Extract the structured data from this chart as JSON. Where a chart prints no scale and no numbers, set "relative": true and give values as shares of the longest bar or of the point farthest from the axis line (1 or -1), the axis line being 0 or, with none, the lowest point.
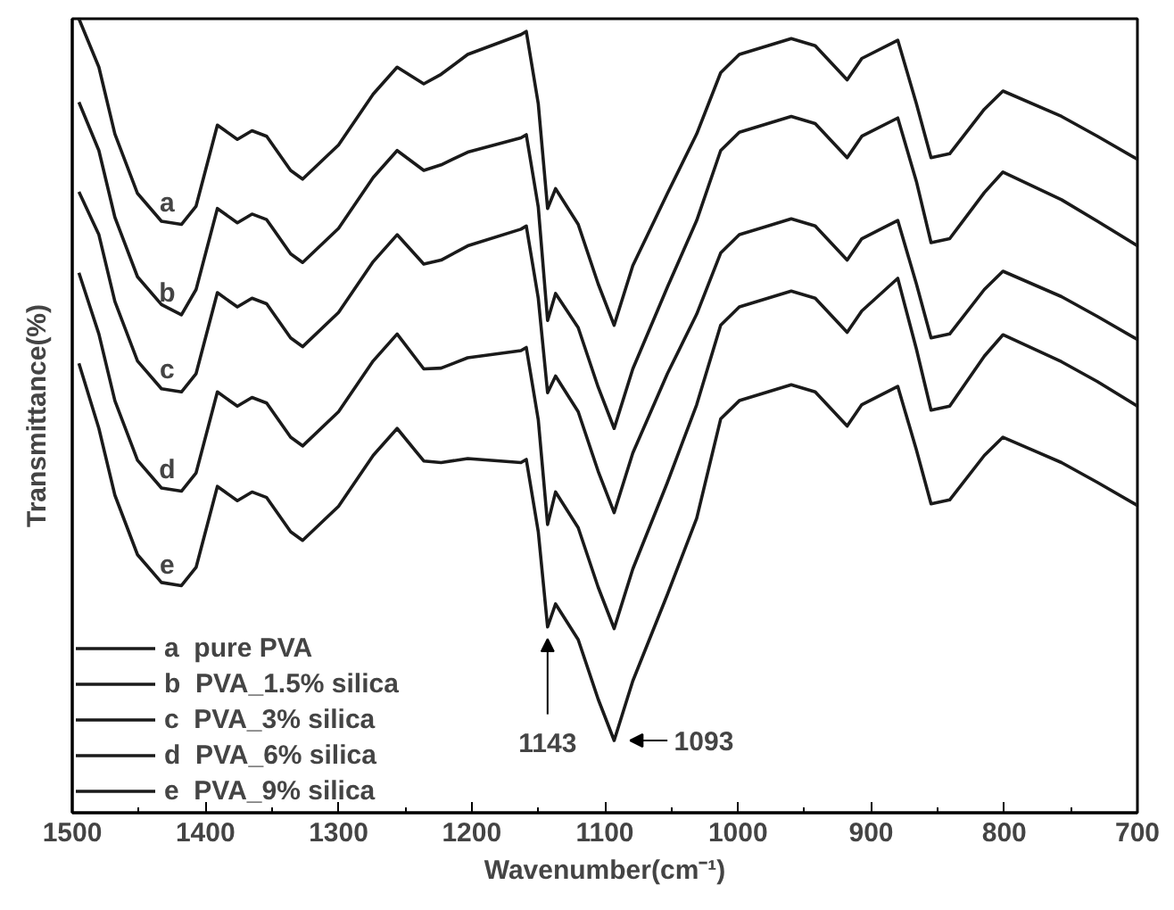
{
  "chart_data": {
    "type": "line",
    "relative": true,
    "xlabel": "Wavenumber(cm⁻¹)",
    "ylabel": "Transmittance(%)",
    "x": [
      1495,
      1480,
      1468,
      1451,
      1433,
      1418,
      1407,
      1391,
      1376,
      1365,
      1354,
      1336,
      1327,
      1300,
      1274,
      1256,
      1236,
      1223,
      1203,
      1163,
      1159,
      1150,
      1143,
      1137,
      1120,
      1105,
      1093,
      1079,
      1053,
      1031,
      1013,
      999,
      960,
      942,
      918,
      907,
      880,
      866,
      855,
      841,
      815,
      801,
      757,
      730,
      700
    ],
    "xlim": [
      1500,
      700
    ],
    "xticks": [
      1500,
      1400,
      1300,
      1200,
      1100,
      1000,
      900,
      800,
      700
    ],
    "tick_labels": "x",
    "grid": false,
    "legend": "bottom left",
    "marker": "none",
    "line_style": "solid",
    "series": [
      {
        "name": "a  pure PVA",
        "color": "#1a1a1a",
        "values": [
          1.0,
          0.939,
          0.855,
          0.78,
          0.745,
          0.741,
          0.764,
          0.866,
          0.848,
          0.859,
          0.852,
          0.809,
          0.798,
          0.841,
          0.905,
          0.939,
          0.918,
          0.93,
          0.955,
          0.98,
          0.984,
          0.893,
          0.761,
          0.786,
          0.741,
          0.666,
          0.614,
          0.689,
          0.78,
          0.855,
          0.932,
          0.955,
          0.975,
          0.966,
          0.923,
          0.95,
          0.973,
          0.893,
          0.825,
          0.83,
          0.886,
          0.909,
          0.877,
          0.852,
          0.823
        ]
      },
      {
        "name": "b  PVA_1.5% silica",
        "color": "#1a1a1a",
        "values": [
          0.895,
          0.834,
          0.75,
          0.675,
          0.64,
          0.627,
          0.659,
          0.761,
          0.743,
          0.754,
          0.747,
          0.704,
          0.693,
          0.736,
          0.8,
          0.834,
          0.809,
          0.816,
          0.832,
          0.85,
          0.854,
          0.763,
          0.62,
          0.654,
          0.611,
          0.536,
          0.484,
          0.559,
          0.662,
          0.746,
          0.834,
          0.857,
          0.877,
          0.868,
          0.825,
          0.852,
          0.875,
          0.795,
          0.718,
          0.723,
          0.781,
          0.807,
          0.772,
          0.745,
          0.714
        ]
      },
      {
        "name": "c  PVA_3% silica",
        "color": "#1a1a1a",
        "values": [
          0.782,
          0.728,
          0.644,
          0.569,
          0.534,
          0.53,
          0.553,
          0.655,
          0.637,
          0.648,
          0.641,
          0.598,
          0.587,
          0.63,
          0.694,
          0.728,
          0.691,
          0.696,
          0.714,
          0.735,
          0.739,
          0.648,
          0.529,
          0.55,
          0.505,
          0.43,
          0.378,
          0.453,
          0.553,
          0.628,
          0.705,
          0.728,
          0.748,
          0.739,
          0.696,
          0.723,
          0.746,
          0.666,
          0.598,
          0.603,
          0.659,
          0.682,
          0.65,
          0.625,
          0.596
        ]
      },
      {
        "name": "d  PVA_6% silica",
        "color": "#1a1a1a",
        "values": [
          0.68,
          0.603,
          0.519,
          0.444,
          0.409,
          0.405,
          0.428,
          0.53,
          0.512,
          0.523,
          0.516,
          0.473,
          0.462,
          0.505,
          0.569,
          0.603,
          0.559,
          0.56,
          0.573,
          0.582,
          0.586,
          0.495,
          0.363,
          0.404,
          0.359,
          0.284,
          0.232,
          0.307,
          0.416,
          0.514,
          0.614,
          0.637,
          0.657,
          0.648,
          0.605,
          0.632,
          0.673,
          0.584,
          0.507,
          0.512,
          0.575,
          0.602,
          0.568,
          0.543,
          0.512
        ]
      },
      {
        "name": "e  PVA_9% silica",
        "color": "#1a1a1a",
        "values": [
          0.566,
          0.484,
          0.4,
          0.325,
          0.29,
          0.286,
          0.309,
          0.411,
          0.393,
          0.404,
          0.397,
          0.354,
          0.343,
          0.386,
          0.45,
          0.484,
          0.443,
          0.441,
          0.446,
          0.441,
          0.445,
          0.354,
          0.234,
          0.263,
          0.218,
          0.143,
          0.091,
          0.166,
          0.275,
          0.371,
          0.496,
          0.519,
          0.539,
          0.53,
          0.487,
          0.514,
          0.537,
          0.457,
          0.389,
          0.394,
          0.45,
          0.473,
          0.441,
          0.416,
          0.387
        ]
      }
    ],
    "annotations": [
      "a",
      "b",
      "c",
      "d",
      "e",
      {
        "text": "1143",
        "x": 1143,
        "y": 0.234
      },
      {
        "text": "1093",
        "x": 1093,
        "y": 0.091
      }
    ]
  }
}
